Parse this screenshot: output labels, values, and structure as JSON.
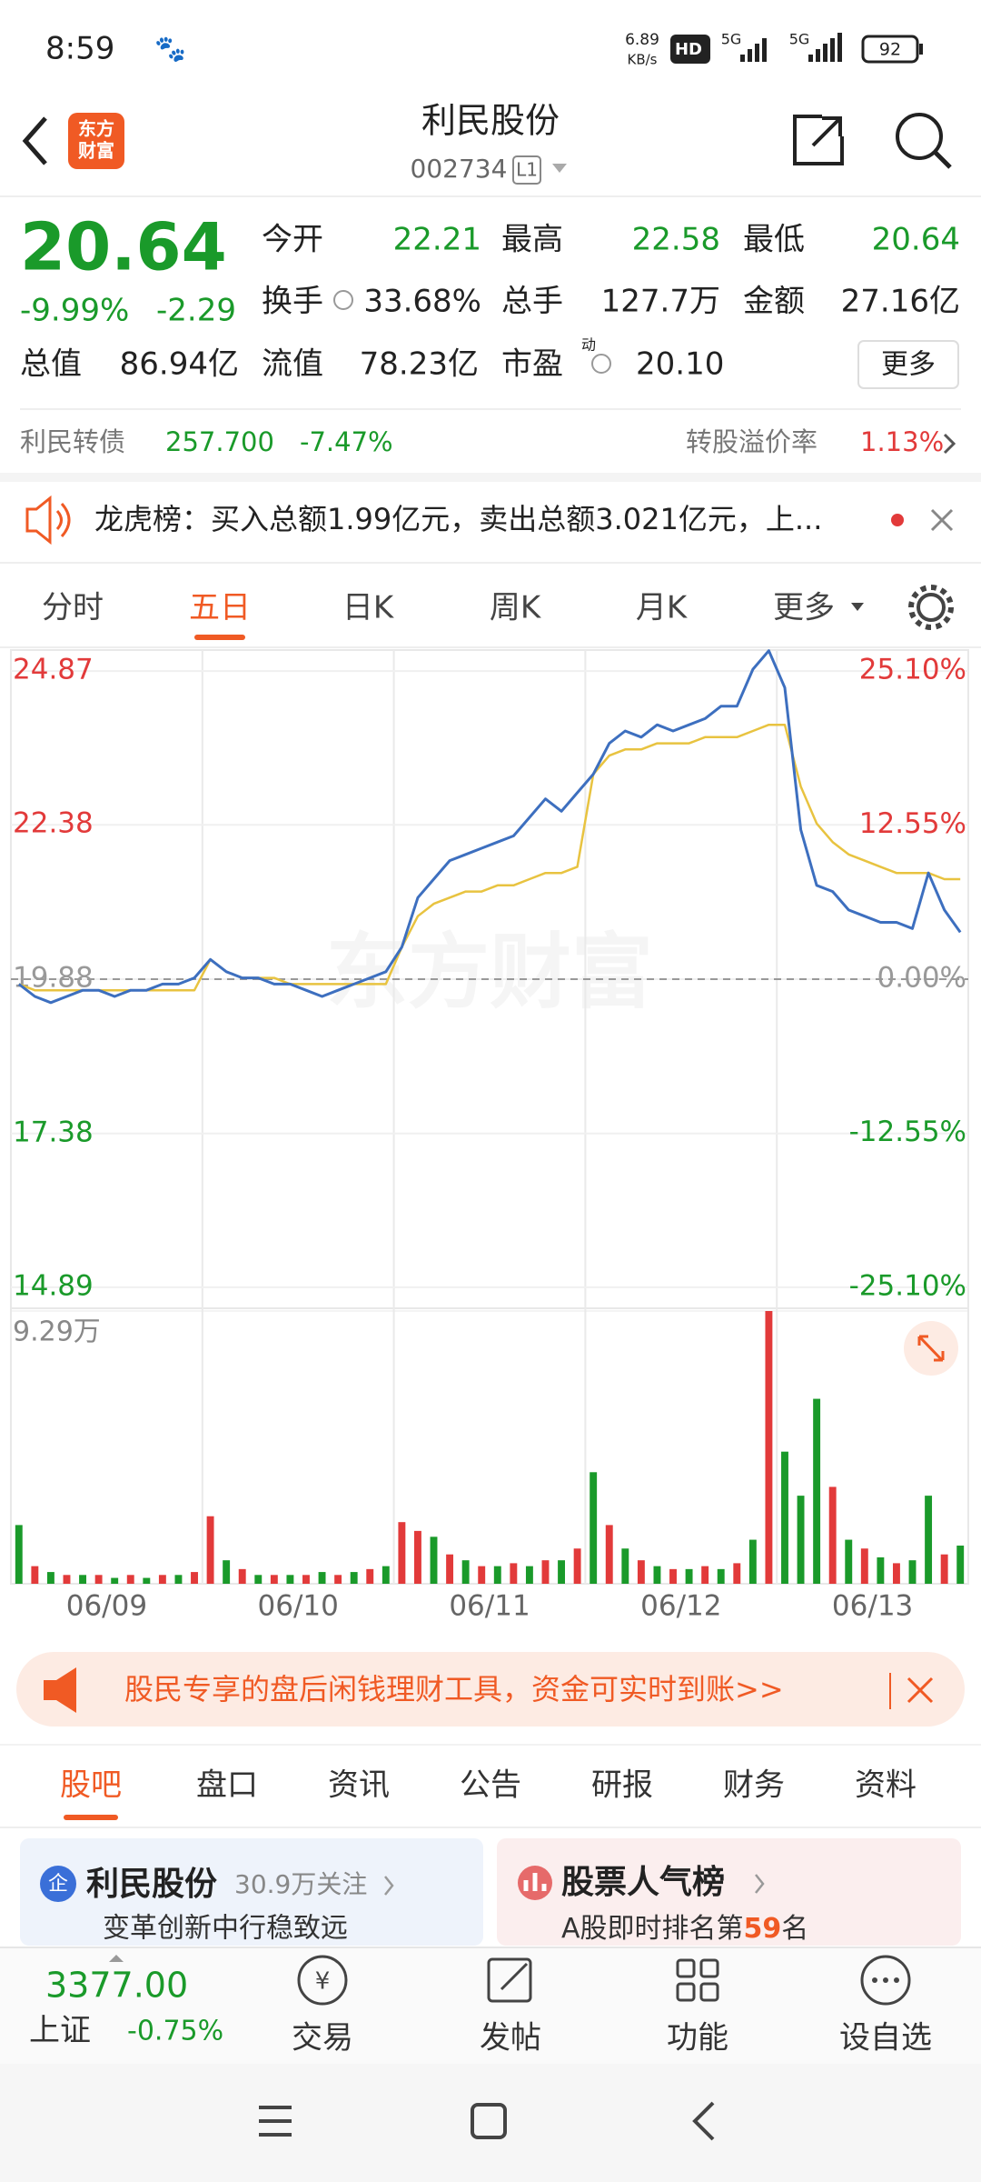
{
  "status_bar": {
    "time": "8:59",
    "speed": "6.89",
    "speed_unit": "KB/s",
    "hd": "HD",
    "net1": "5G",
    "net2": "5G",
    "battery": "92"
  },
  "header": {
    "logo_top": "东方",
    "logo_bottom": "财富",
    "title": "利民股份",
    "code": "002734",
    "level": "L1"
  },
  "quote": {
    "price": "20.64",
    "change_pct": "-9.99%",
    "change": "-2.29",
    "fields": [
      {
        "label": "今开",
        "value": "22.21"
      },
      {
        "label": "最高",
        "value": "22.58"
      },
      {
        "label": "最低",
        "value": "20.64"
      },
      {
        "label": "换手",
        "value": "33.68%"
      },
      {
        "label": "总手",
        "value": "127.7万"
      },
      {
        "label": "金额",
        "value": "27.16亿"
      },
      {
        "label": "总值",
        "value": "86.94亿"
      },
      {
        "label": "流值",
        "value": "78.23亿"
      },
      {
        "label": "市盈",
        "value": "20.10"
      }
    ],
    "pe_mark": "动",
    "more": "更多"
  },
  "bond": {
    "name": "利民转债",
    "price": "257.700",
    "change": "-7.47%",
    "premium_label": "转股溢价率",
    "premium": "1.13%"
  },
  "notice": {
    "text": "龙虎榜：买入总额1.99亿元，卖出总额3.021亿元，上..."
  },
  "tabs": [
    "分时",
    "五日",
    "日K",
    "周K",
    "月K",
    "更多"
  ],
  "chart": {
    "type": "line",
    "watermark": "东方财富",
    "days": [
      "06/09",
      "06/10",
      "06/11",
      "06/12",
      "06/13"
    ],
    "up_color": "#e23a3a",
    "down_color": "#1a9a2a",
    "flat_color": "#999999",
    "ylim": [
      14.55,
      25.21
    ],
    "yticks": [
      14.89,
      17.38,
      19.88,
      22.38,
      24.87
    ],
    "y2lim": [
      -26.8,
      26.8
    ],
    "y2ticks": [
      {
        "value": -25.1,
        "label": "-25.10%"
      },
      {
        "value": -12.55,
        "label": "-12.55%"
      },
      {
        "value": 0,
        "label": "0.00%"
      },
      {
        "value": 12.55,
        "label": "12.55%"
      },
      {
        "value": 25.1,
        "label": "25.10%"
      }
    ],
    "price": {
      "color": "#3d6fbf",
      "values": [
        19.8,
        19.6,
        19.5,
        19.6,
        19.7,
        19.7,
        19.6,
        19.7,
        19.7,
        19.8,
        19.8,
        19.9,
        20.2,
        20.0,
        19.9,
        19.9,
        19.8,
        19.8,
        19.7,
        19.6,
        19.7,
        19.8,
        19.9,
        20.0,
        20.4,
        21.2,
        21.5,
        21.8,
        21.9,
        22.0,
        22.1,
        22.2,
        22.5,
        22.8,
        22.6,
        22.9,
        23.2,
        23.7,
        23.9,
        23.8,
        24.0,
        23.9,
        24.0,
        24.1,
        24.3,
        24.3,
        24.9,
        25.2,
        24.6,
        22.3,
        21.4,
        21.3,
        21.0,
        20.9,
        20.8,
        20.8,
        20.7,
        21.6,
        21.0,
        20.64
      ]
    },
    "average": {
      "color": "#e8c340",
      "values": [
        19.8,
        19.7,
        19.7,
        19.7,
        19.7,
        19.7,
        19.7,
        19.7,
        19.7,
        19.7,
        19.7,
        19.7,
        20.2,
        20.0,
        19.9,
        19.9,
        19.9,
        19.8,
        19.8,
        19.8,
        19.8,
        19.8,
        19.8,
        19.8,
        20.4,
        20.9,
        21.1,
        21.2,
        21.3,
        21.3,
        21.4,
        21.4,
        21.5,
        21.6,
        21.6,
        21.7,
        23.2,
        23.5,
        23.6,
        23.6,
        23.7,
        23.7,
        23.7,
        23.8,
        23.8,
        23.8,
        23.9,
        24.0,
        24.0,
        23.0,
        22.4,
        22.1,
        21.9,
        21.8,
        21.7,
        21.6,
        21.6,
        21.6,
        21.5,
        21.5
      ]
    },
    "volume": {
      "ylim": [
        0,
        9.29
      ],
      "yticks": [
        {
          "value": 9.29,
          "label": "9.29万"
        }
      ],
      "values": [
        2.0,
        0.6,
        0.4,
        0.3,
        0.3,
        0.3,
        0.2,
        0.3,
        0.2,
        0.3,
        0.3,
        0.4,
        2.3,
        0.8,
        0.5,
        0.3,
        0.3,
        0.3,
        0.3,
        0.4,
        0.3,
        0.4,
        0.5,
        0.6,
        2.1,
        1.8,
        1.6,
        1.0,
        0.8,
        0.6,
        0.6,
        0.7,
        0.6,
        0.8,
        0.8,
        1.2,
        3.8,
        2.0,
        1.2,
        0.8,
        0.6,
        0.5,
        0.5,
        0.6,
        0.5,
        0.7,
        1.5,
        9.29,
        4.5,
        3.0,
        6.3,
        3.3,
        1.5,
        1.2,
        0.9,
        0.7,
        0.8,
        3.0,
        1.0,
        1.3
      ],
      "colors": [
        "#1a9a2a",
        "#e23a3a",
        "#1a9a2a",
        "#e23a3a",
        "#1a9a2a",
        "#e23a3a",
        "#1a9a2a",
        "#e23a3a",
        "#1a9a2a",
        "#e23a3a",
        "#1a9a2a",
        "#e23a3a",
        "#e23a3a",
        "#1a9a2a",
        "#e23a3a",
        "#1a9a2a",
        "#e23a3a",
        "#1a9a2a",
        "#e23a3a",
        "#1a9a2a",
        "#e23a3a",
        "#1a9a2a",
        "#e23a3a",
        "#1a9a2a",
        "#e23a3a",
        "#e23a3a",
        "#1a9a2a",
        "#e23a3a",
        "#1a9a2a",
        "#e23a3a",
        "#1a9a2a",
        "#e23a3a",
        "#1a9a2a",
        "#e23a3a",
        "#1a9a2a",
        "#e23a3a",
        "#1a9a2a",
        "#e23a3a",
        "#1a9a2a",
        "#e23a3a",
        "#1a9a2a",
        "#e23a3a",
        "#1a9a2a",
        "#e23a3a",
        "#1a9a2a",
        "#e23a3a",
        "#1a9a2a",
        "#e23a3a",
        "#1a9a2a",
        "#1a9a2a",
        "#1a9a2a",
        "#e23a3a",
        "#1a9a2a",
        "#e23a3a",
        "#1a9a2a",
        "#e23a3a",
        "#1a9a2a",
        "#1a9a2a",
        "#e23a3a",
        "#1a9a2a"
      ]
    }
  },
  "banner": {
    "text": "股民专享的盘后闲钱理财工具，资金可实时到账>>"
  },
  "sub_tabs": [
    "股吧",
    "盘口",
    "资讯",
    "公告",
    "研报",
    "财务",
    "资料"
  ],
  "cards": [
    {
      "icon": "企",
      "title": "利民股份",
      "followers": "30.9万关注",
      "subtitle": "变革创新中行稳致远"
    },
    {
      "title": "股票人气榜",
      "rank_prefix": "A股即时排名第",
      "rank": "59",
      "rank_suffix": "名"
    }
  ],
  "bottom_bar": {
    "index_value": "3377.00",
    "index_name": "上证",
    "index_change": "-0.75%",
    "items": [
      "交易",
      "发帖",
      "功能",
      "设自选"
    ]
  }
}
